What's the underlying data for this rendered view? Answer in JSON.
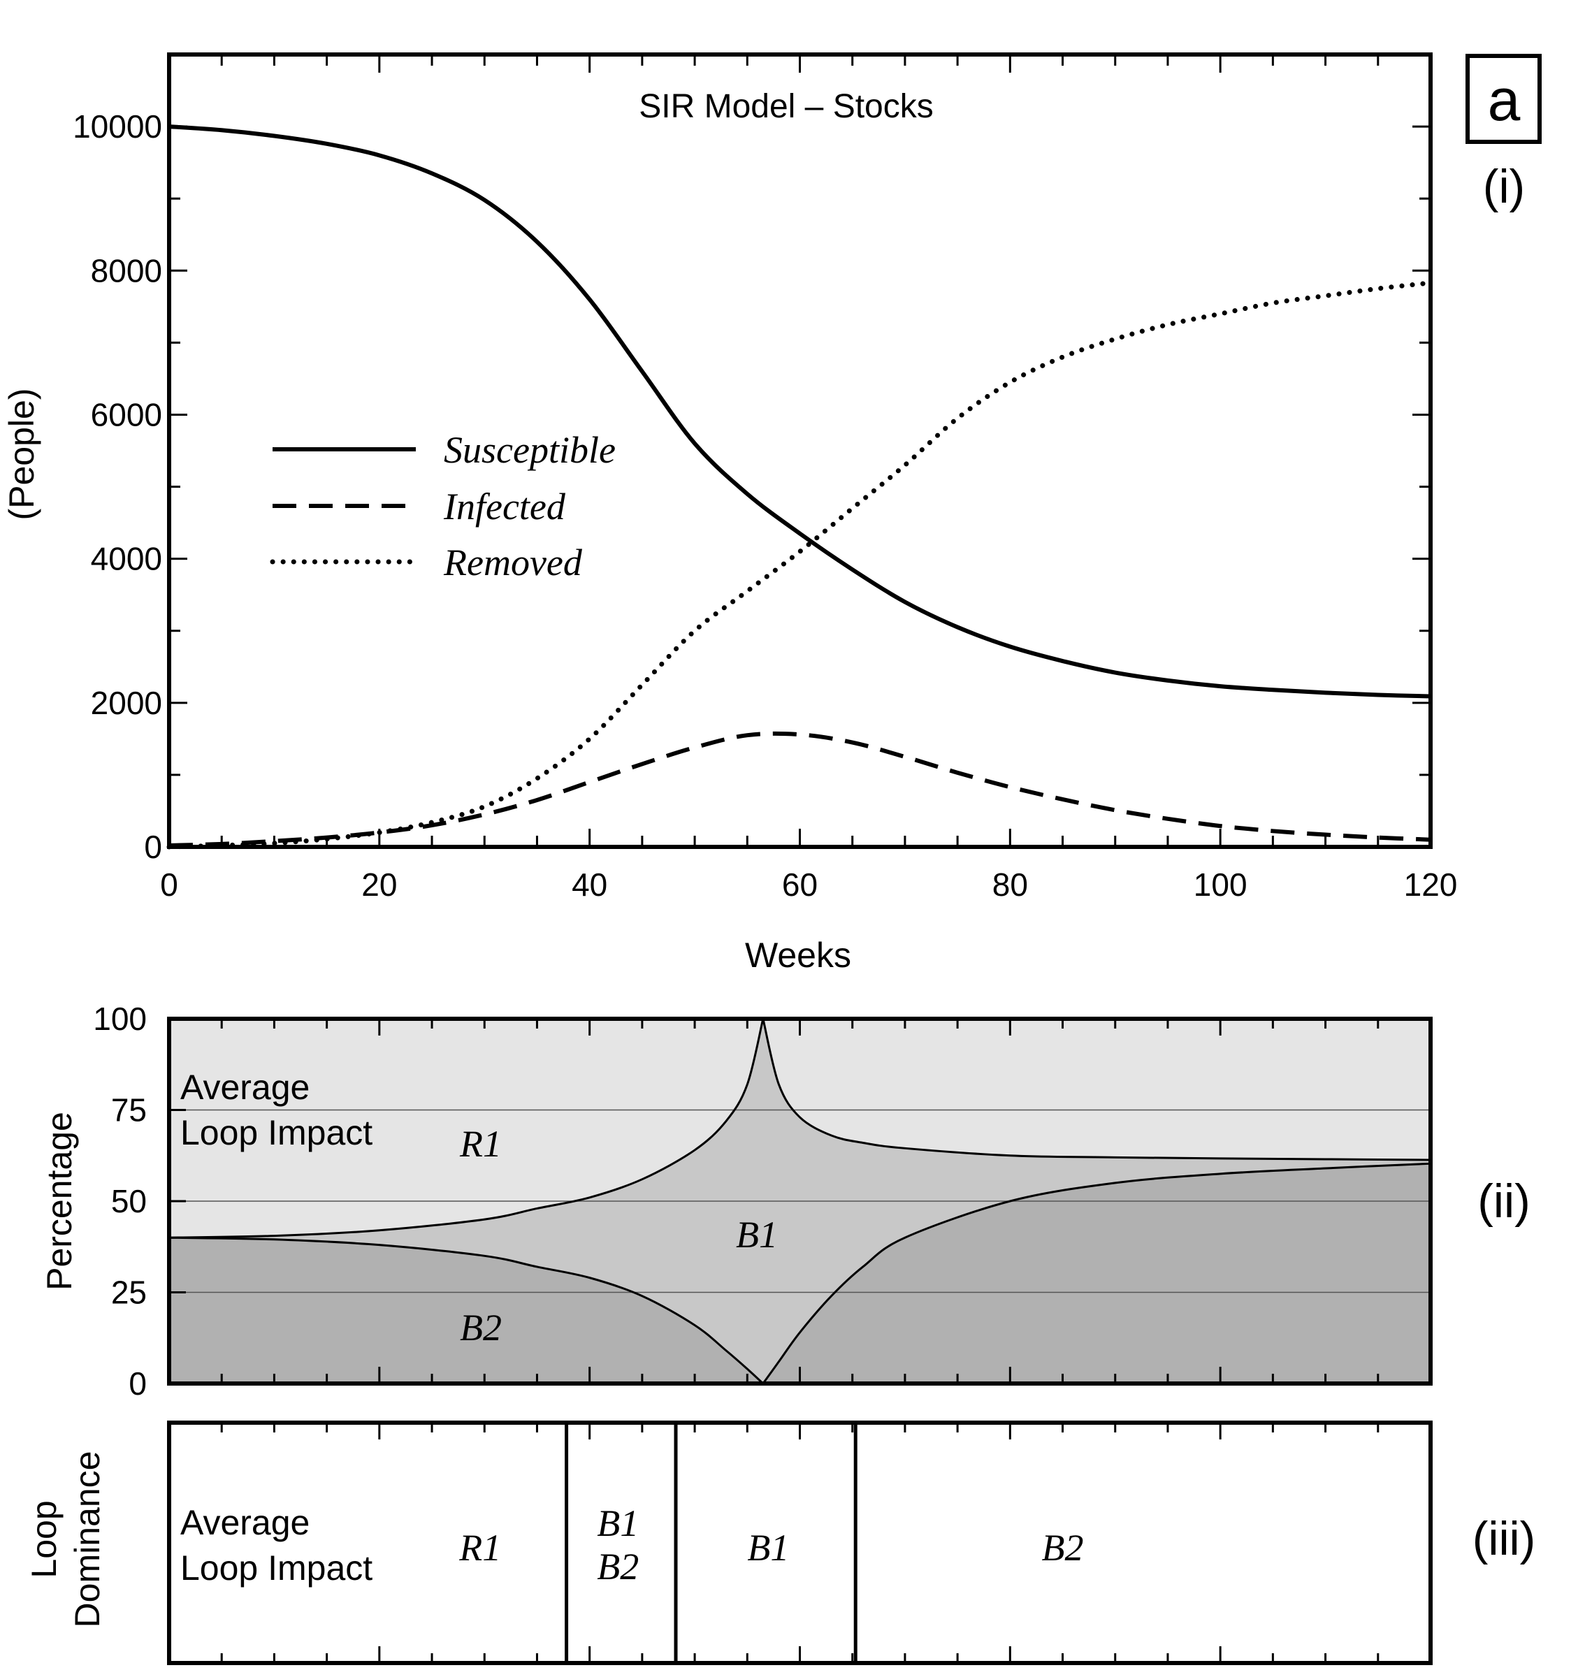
{
  "panel_letter": "a",
  "panel_labels": [
    "(i)",
    "(ii)",
    "(iii)"
  ],
  "chart_data": [
    {
      "type": "line",
      "title": "SIR Model – Stocks",
      "xlabel": "Weeks",
      "ylabel": "(People)",
      "xlim": [
        0,
        120
      ],
      "ylim": [
        0,
        11000
      ],
      "xticks": [
        "0",
        "20",
        "40",
        "60",
        "80",
        "100",
        "120"
      ],
      "yticks": [
        "0",
        "2000",
        "4000",
        "6000",
        "8000",
        "10000"
      ],
      "legend_position": "middle-left",
      "x": [
        0,
        5,
        10,
        15,
        20,
        25,
        30,
        35,
        40,
        45,
        50,
        55,
        60,
        65,
        70,
        75,
        80,
        85,
        90,
        95,
        100,
        105,
        110,
        115,
        120
      ],
      "series": [
        {
          "name": "Susceptible",
          "style": "solid",
          "values": [
            10000,
            9950,
            9870,
            9760,
            9600,
            9350,
            8980,
            8400,
            7600,
            6600,
            5600,
            4900,
            4350,
            3850,
            3400,
            3050,
            2780,
            2580,
            2420,
            2310,
            2230,
            2180,
            2140,
            2110,
            2090
          ]
        },
        {
          "name": "Infected",
          "style": "dashed",
          "values": [
            20,
            40,
            80,
            130,
            200,
            300,
            450,
            650,
            900,
            1150,
            1380,
            1550,
            1560,
            1450,
            1250,
            1030,
            830,
            660,
            510,
            390,
            290,
            220,
            170,
            130,
            100
          ]
        },
        {
          "name": "Removed",
          "style": "dotted",
          "values": [
            0,
            20,
            50,
            110,
            200,
            340,
            560,
            950,
            1500,
            2250,
            3000,
            3550,
            4100,
            4700,
            5300,
            5950,
            6450,
            6800,
            7050,
            7250,
            7400,
            7550,
            7650,
            7750,
            7830
          ]
        }
      ]
    },
    {
      "type": "area",
      "ylabel": "Percentage",
      "annotation": [
        "Average",
        "Loop Impact"
      ],
      "xlim": [
        0,
        120
      ],
      "ylim": [
        0,
        100
      ],
      "yticks": [
        "0",
        "25",
        "50",
        "75",
        "100"
      ],
      "gridlines": [
        25,
        50,
        75
      ],
      "region_labels": {
        "top": "R1",
        "middle": "B1",
        "bottom": "B2"
      },
      "x": [
        0,
        10,
        20,
        30,
        35,
        40,
        45,
        50,
        53,
        55,
        56.5,
        58,
        60,
        63,
        66,
        70,
        80,
        90,
        100,
        110,
        120
      ],
      "upper_boundary": [
        40,
        40.5,
        42,
        45,
        48,
        51,
        56,
        64,
        72,
        82,
        100,
        82,
        73,
        68,
        66,
        64.5,
        62.5,
        62,
        61.7,
        61.5,
        61.3
      ],
      "lower_boundary": [
        40,
        39.5,
        38,
        35,
        32,
        29,
        24,
        16,
        9,
        4,
        0,
        6,
        14,
        24,
        32,
        40,
        50,
        55,
        57.5,
        59,
        60.3
      ]
    },
    {
      "type": "table",
      "ylabel": [
        "Loop",
        "Dominance"
      ],
      "annotation": [
        "Average",
        "Loop Impact"
      ],
      "xlim": [
        0,
        120
      ],
      "boundaries": [
        37.8,
        48.2,
        65.3
      ],
      "segments": [
        {
          "from": 0,
          "to": 37.8,
          "label": [
            "R1"
          ]
        },
        {
          "from": 37.8,
          "to": 48.2,
          "label": [
            "B1",
            "B2"
          ]
        },
        {
          "from": 48.2,
          "to": 65.3,
          "label": [
            "B1"
          ]
        },
        {
          "from": 65.3,
          "to": 120,
          "label": [
            "B2"
          ]
        }
      ]
    }
  ]
}
